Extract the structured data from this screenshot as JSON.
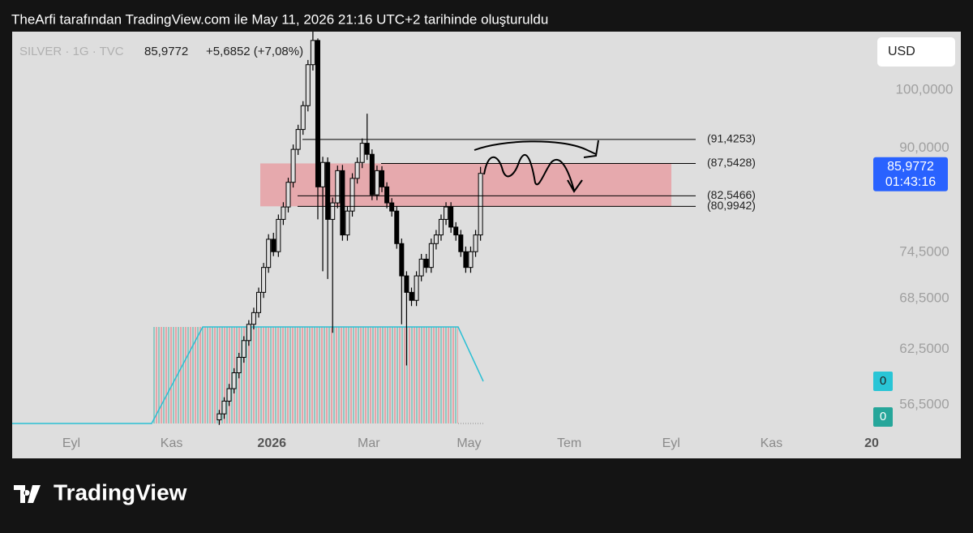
{
  "header": {
    "attribution": "TheArfi tarafından TradingView.com ile May 11, 2026 21:16 UTC+2 tarihinde oluşturuldu"
  },
  "chart_data": {
    "type": "candlestick",
    "symbol": "SILVER · 1G · TVC",
    "last_price": {
      "value": 85.9772,
      "label": "85,9772"
    },
    "change": "+5,6852 (+7,08%)",
    "countdown": "01:43:16",
    "currency": "USD",
    "log_scale": true,
    "color": "#000000",
    "x": [
      90,
      93,
      96,
      99,
      102,
      105,
      108,
      111,
      114,
      117,
      120,
      123,
      126,
      129,
      132,
      135,
      138,
      141,
      144,
      147,
      150,
      153,
      156,
      159,
      162,
      165,
      168,
      171,
      174,
      177,
      180,
      183,
      186,
      189,
      192,
      195,
      198,
      201,
      204,
      207,
      210,
      213,
      216,
      219,
      222,
      225,
      228,
      231,
      234,
      237,
      240,
      243,
      246,
      249
    ],
    "open": [
      55.0,
      55.6,
      56.9,
      58.2,
      59.9,
      61.6,
      63.5,
      65.4,
      66.8,
      69.3,
      72.5,
      76.3,
      74.6,
      79.1,
      80.9,
      84.6,
      89.8,
      93.1,
      97.2,
      104.7,
      109.4,
      83.9,
      87.7,
      79.1,
      81.5,
      86.4,
      76.9,
      80.3,
      85.2,
      87.7,
      90.8,
      89.0,
      82.7,
      86.4,
      83.9,
      81.5,
      80.3,
      75.7,
      71.4,
      69.3,
      68.3,
      71.4,
      73.6,
      72.5,
      75.7,
      76.9,
      79.1,
      80.9,
      78.0,
      76.9,
      74.6,
      72.5,
      74.6,
      76.9
    ],
    "high": [
      56.0,
      57.3,
      58.7,
      60.4,
      62.1,
      64.0,
      65.9,
      67.4,
      69.9,
      73.1,
      77.0,
      77.2,
      79.8,
      81.6,
      85.3,
      90.6,
      93.9,
      98.0,
      105.6,
      112.0,
      109.8,
      88.6,
      88.5,
      82.3,
      87.2,
      87.3,
      81.0,
      86.0,
      88.5,
      91.6,
      95.8,
      89.8,
      87.2,
      87.1,
      84.6,
      82.2,
      81.0,
      76.4,
      72.0,
      69.9,
      72.0,
      74.3,
      74.3,
      76.4,
      77.6,
      79.8,
      81.6,
      81.6,
      78.7,
      77.6,
      75.3,
      75.3,
      77.6,
      87.0
    ],
    "low": [
      54.5,
      55.1,
      56.4,
      57.7,
      59.3,
      61.0,
      62.9,
      64.8,
      66.2,
      68.6,
      71.8,
      74.0,
      73.9,
      78.3,
      80.1,
      83.8,
      88.9,
      92.2,
      96.2,
      103.6,
      79.1,
      72.0,
      71.0,
      64.4,
      80.7,
      76.1,
      76.1,
      79.5,
      84.4,
      86.8,
      88.1,
      81.9,
      81.9,
      83.1,
      80.7,
      79.5,
      75.0,
      65.4,
      60.7,
      67.6,
      67.6,
      70.7,
      71.8,
      71.8,
      74.9,
      76.1,
      78.3,
      77.2,
      76.1,
      73.9,
      71.8,
      71.8,
      73.9,
      76.1
    ],
    "close": [
      55.6,
      56.9,
      58.2,
      59.9,
      61.6,
      63.5,
      65.4,
      66.8,
      69.3,
      72.5,
      76.3,
      74.6,
      79.1,
      80.9,
      84.6,
      89.8,
      93.1,
      97.2,
      104.7,
      109.4,
      83.9,
      87.7,
      79.1,
      81.5,
      86.4,
      76.9,
      80.3,
      85.2,
      87.7,
      90.8,
      89.0,
      82.7,
      86.4,
      83.9,
      81.5,
      80.3,
      75.7,
      71.4,
      69.3,
      68.3,
      71.4,
      73.6,
      72.5,
      75.7,
      76.9,
      79.1,
      80.9,
      78.0,
      76.9,
      74.6,
      72.5,
      74.6,
      76.9,
      85.9772
    ],
    "xlim": [
      -36,
      487
    ],
    "xticks": [
      {
        "value": 0,
        "label": "Eyl"
      },
      {
        "value": 61,
        "label": "Kas"
      },
      {
        "value": 122,
        "label": "2026"
      },
      {
        "value": 181,
        "label": "Mar"
      },
      {
        "value": 242,
        "label": "May"
      },
      {
        "value": 303,
        "label": "Tem"
      },
      {
        "value": 365,
        "label": "Eyl"
      },
      {
        "value": 426,
        "label": "Kas"
      },
      {
        "value": 487,
        "label": "20"
      }
    ],
    "ylim": [
      54.0,
      111.0
    ],
    "yticks": [
      {
        "value": 100,
        "label": "100,0000"
      },
      {
        "value": 90,
        "label": "90,0000"
      },
      {
        "value": 74.5,
        "label": "74,5000"
      },
      {
        "value": 68.5,
        "label": "68,5000"
      },
      {
        "value": 62.5,
        "label": "62,5000"
      },
      {
        "value": 56.5,
        "label": "56,5000"
      }
    ],
    "levels": [
      {
        "value": 91.4253,
        "label": "(91,4253)"
      },
      {
        "value": 87.5428,
        "label": "(87,5428)"
      },
      {
        "value": 82.5466,
        "label": "(82,5466)"
      },
      {
        "value": 80.9942,
        "label": "(80,9942)"
      }
    ],
    "zone_color": "#e8a0a4",
    "indicator_values": [
      0,
      0
    ]
  }
}
